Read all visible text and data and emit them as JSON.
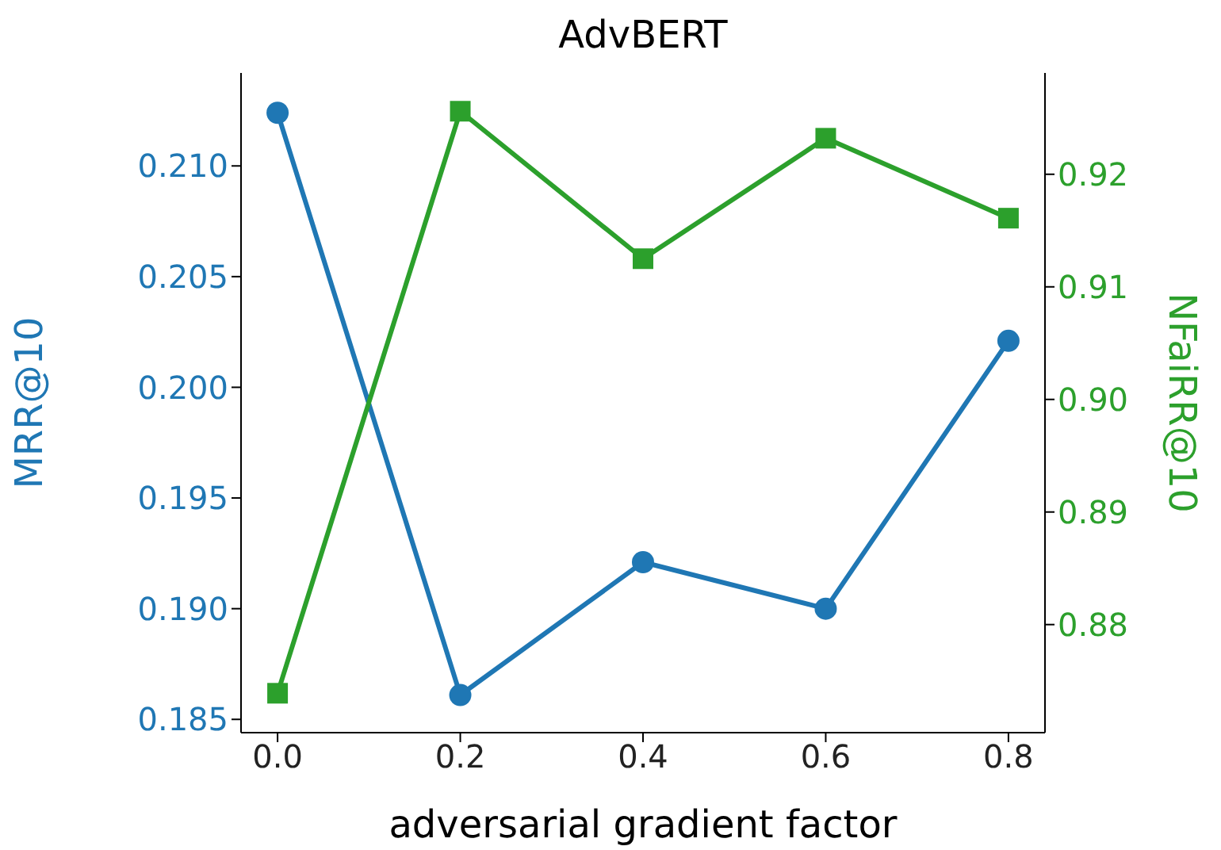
{
  "chart_data": {
    "type": "line",
    "title": "AdvBERT",
    "xlabel": "adversarial gradient factor",
    "ylabel": "MRR@10",
    "y2label": "NFaiRR@10",
    "x": [
      0.0,
      0.2,
      0.4,
      0.6,
      0.8
    ],
    "xlim": [
      -0.04,
      0.84
    ],
    "xticks": [
      {
        "value": 0,
        "label": "0.0"
      },
      {
        "value": 0.2,
        "label": "0.2"
      },
      {
        "value": 0.4,
        "label": "0.4"
      },
      {
        "value": 0.6,
        "label": "0.6"
      },
      {
        "value": 0.8,
        "label": "0.8"
      }
    ],
    "ylim": [
      0.1844,
      0.2142
    ],
    "yticks": [
      0.185,
      {
        "value": 0.19,
        "label": "0.190"
      },
      0.195,
      {
        "value": 0.2,
        "label": "0.200"
      },
      0.205,
      {
        "value": 0.21,
        "label": "0.210"
      }
    ],
    "y2lim": [
      0.8704,
      0.929
    ],
    "y2ticks": [
      0.88,
      0.89,
      {
        "value": 0.9,
        "label": "0.90"
      },
      0.91,
      0.92
    ],
    "series": [
      {
        "color": "#1f77b4",
        "marker": "circle",
        "values": [
          0.2124,
          0.1861,
          0.1921,
          0.19,
          0.2021
        ]
      },
      {
        "color": "#2ca02c",
        "marker": "square",
        "axis": "y2",
        "values": [
          0.8739,
          0.9256,
          0.9125,
          0.9232,
          0.9161
        ]
      }
    ]
  }
}
